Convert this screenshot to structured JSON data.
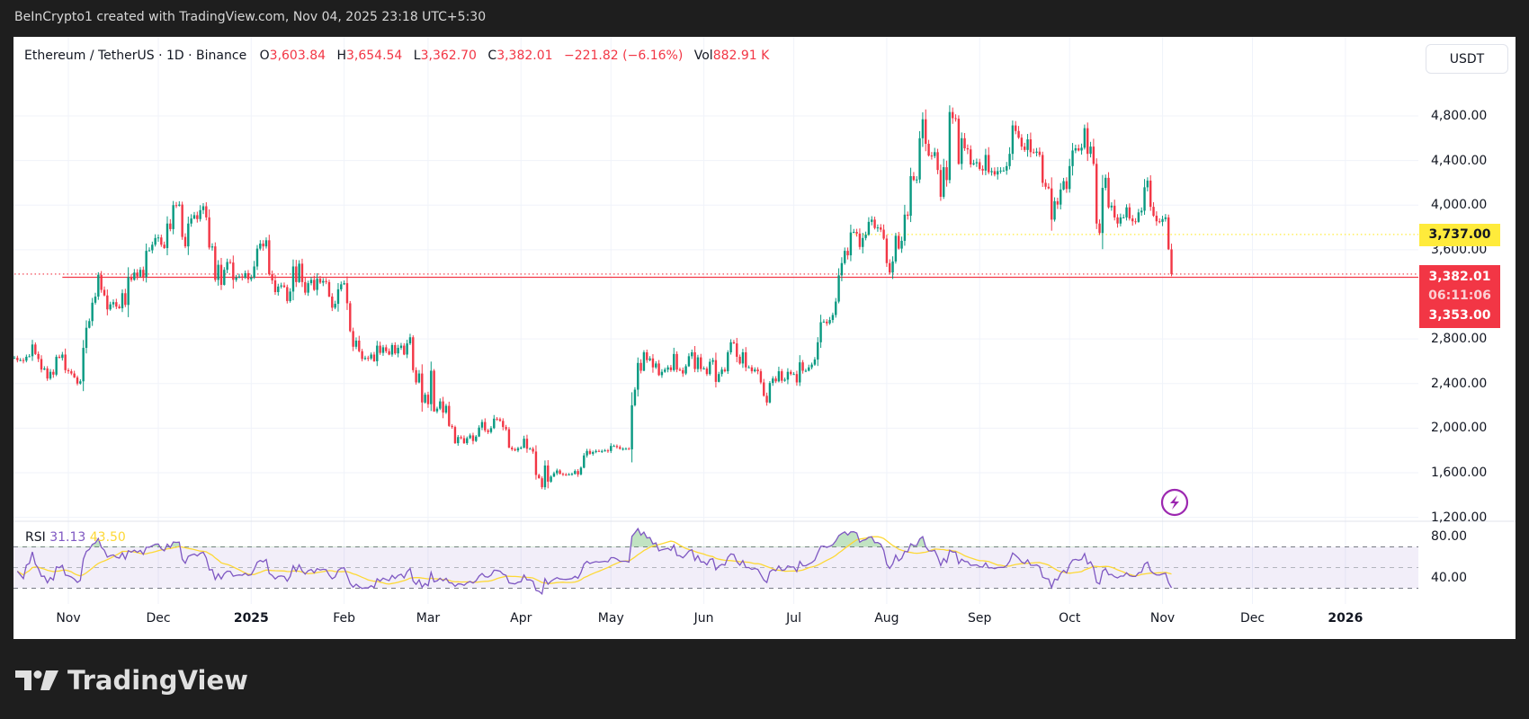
{
  "header": {
    "attribution": "BeInCrypto1 created with TradingView.com, Nov 04, 2025 23:18 UTC+5:30"
  },
  "legend": {
    "symbol": "Ethereum / TetherUS · 1D · Binance",
    "open_label": "O",
    "open": "3,603.84",
    "high_label": "H",
    "high": "3,654.54",
    "low_label": "L",
    "low": "3,362.70",
    "close_label": "C",
    "close": "3,382.01",
    "change": "−221.82 (−6.16%)",
    "vol_label": "Vol",
    "vol": "882.91 K"
  },
  "currency_button": "USDT",
  "price_labels": {
    "yellow_line": "3,737.00",
    "last_price": "3,382.01",
    "countdown": "06:11:06",
    "red_line": "3,353.00"
  },
  "rsi_legend": {
    "label": "RSI",
    "rsi": "31.13",
    "ma": "43.50"
  },
  "rsi_axis": [
    "80.00",
    "40.00"
  ],
  "logo_text": "TradingView",
  "chart_data": {
    "type": "candlestick",
    "colors": {
      "up": "#089981",
      "down": "#F23645",
      "rsi": "#7E57C2",
      "rsi_ma": "#FDD835",
      "yellow_line": "#FFEB3B",
      "red_line": "#F23645"
    },
    "ylim": [
      1200,
      4960
    ],
    "yticks": [
      "4,800.00",
      "4,400.00",
      "4,000.00",
      "3,600.00",
      "2,800.00",
      "2,400.00",
      "2,000.00",
      "1,600.00",
      "1,200.00"
    ],
    "ytick_values": [
      4800,
      4400,
      4000,
      3600,
      2800,
      2400,
      2000,
      1600,
      1200
    ],
    "xticks": [
      {
        "label": "Nov",
        "date": "2024-11-01"
      },
      {
        "label": "Dec",
        "date": "2024-12-01"
      },
      {
        "label": "2025",
        "date": "2025-01-01",
        "bold": true
      },
      {
        "label": "Feb",
        "date": "2025-02-01"
      },
      {
        "label": "Mar",
        "date": "2025-03-01"
      },
      {
        "label": "Apr",
        "date": "2025-04-01"
      },
      {
        "label": "May",
        "date": "2025-05-01"
      },
      {
        "label": "Jun",
        "date": "2025-06-01"
      },
      {
        "label": "Jul",
        "date": "2025-07-01"
      },
      {
        "label": "Aug",
        "date": "2025-08-01"
      },
      {
        "label": "Sep",
        "date": "2025-09-01"
      },
      {
        "label": "Oct",
        "date": "2025-10-01"
      },
      {
        "label": "Nov",
        "date": "2025-11-01"
      },
      {
        "label": "Dec",
        "date": "2025-12-01"
      },
      {
        "label": "2026",
        "date": "2026-01-01",
        "bold": true
      }
    ],
    "daily_closes": {
      "2024-10-14": [
        2630,
        2610,
        2610,
        2605,
        2640,
        2645,
        2750,
        2665,
        2620,
        2525,
        2535,
        2445,
        2505,
        2480,
        2640,
        2630,
        2660,
        2520
      ],
      "2024-11-01": [
        2510,
        2490,
        2455,
        2400,
        2420,
        2720,
        2900,
        2960,
        3125,
        3180,
        3375,
        3240,
        3190,
        3065,
        3110,
        3130,
        3090,
        3075,
        3210,
        3105,
        3355,
        3330,
        3395,
        3360,
        3420,
        3355,
        3590,
        3595,
        3645,
        3705
      ],
      "2024-12-01": [
        3710,
        3645,
        3615,
        3835,
        3785,
        4000,
        3995,
        4005,
        3715,
        3630,
        3835,
        3880,
        3910,
        3875,
        3955,
        3990,
        3890,
        3620,
        3630,
        3330,
        3465,
        3285,
        3420,
        3490,
        3485,
        3330,
        3350,
        3360,
        3350,
        3390,
        3335
      ],
      "2025-01-01": [
        3350,
        3450,
        3610,
        3655,
        3630,
        3685,
        3380,
        3325,
        3220,
        3270,
        3280,
        3265,
        3140,
        3225,
        3450,
        3310,
        3475,
        3310,
        3215,
        3300,
        3330,
        3240,
        3340,
        3305,
        3320,
        3310,
        3180,
        3080,
        3115,
        3245,
        3290
      ],
      "2025-02-01": [
        3300,
        3120,
        2870,
        2730,
        2785,
        2690,
        2620,
        2630,
        2625,
        2660,
        2600,
        2740,
        2675,
        2725,
        2690,
        2660,
        2745,
        2670,
        2720,
        2740,
        2660,
        2760,
        2815,
        2520,
        2410,
        2490,
        2230,
        2300
      ],
      "2025-03-01": [
        2215,
        2515,
        2150,
        2175,
        2240,
        2140,
        2200,
        2020,
        2010,
        1865,
        1920,
        1910,
        1865,
        1910,
        1935,
        1885,
        1925,
        2005,
        2055,
        1980,
        1965,
        2000,
        2085,
        2080,
        2065,
        2010,
        1990,
        1825,
        1810,
        1800,
        1820
      ],
      "2025-04-01": [
        1825,
        1905,
        1815,
        1815,
        1790,
        1580,
        1550,
        1470,
        1665,
        1520,
        1565,
        1595,
        1620,
        1590,
        1585,
        1580,
        1585,
        1590,
        1615,
        1585,
        1645,
        1755,
        1795,
        1770,
        1785,
        1795,
        1790,
        1795,
        1800,
        1795
      ],
      "2025-05-01": [
        1840,
        1840,
        1830,
        1815,
        1815,
        1815,
        1810,
        2205,
        2345,
        2585,
        2515,
        2680,
        2610,
        2625,
        2545,
        2580,
        2475,
        2505,
        2525,
        2545,
        2520,
        2665,
        2525,
        2520,
        2490,
        2555,
        2645,
        2680,
        2530,
        2635,
        2530
      ],
      "2025-06-01": [
        2535,
        2485,
        2595,
        2610,
        2415,
        2485,
        2525,
        2510,
        2680,
        2770,
        2760,
        2640,
        2580,
        2680,
        2545,
        2545,
        2510,
        2525,
        2510,
        2410,
        2290,
        2230,
        2405,
        2445,
        2420,
        2510,
        2425,
        2435,
        2505,
        2485
      ],
      "2025-07-01": [
        2485,
        2410,
        2590,
        2515,
        2515,
        2545,
        2570,
        2615,
        2770,
        2950,
        2955,
        2940,
        2970,
        3015,
        3135,
        3370,
        3480,
        3590,
        3550,
        3755,
        3760,
        3745,
        3625,
        3705,
        3735,
        3850,
        3870,
        3795,
        3800,
        3780,
        3700
      ],
      "2025-08-01": [
        3480,
        3395,
        3495,
        3725,
        3610,
        3680,
        3915,
        3905,
        4260,
        4225,
        4230,
        4600,
        4770,
        4550,
        4445,
        4440,
        4475,
        4315,
        4075,
        4340,
        4225,
        4835,
        4780,
        4775,
        4370,
        4600,
        4510,
        4500,
        4365,
        4375,
        4385
      ],
      "2025-09-01": [
        4325,
        4310,
        4450,
        4295,
        4305,
        4275,
        4305,
        4310,
        4310,
        4350,
        4460,
        4715,
        4665,
        4605,
        4525,
        4495,
        4590,
        4475,
        4470,
        4480,
        4450,
        4200,
        4165,
        4150,
        3870,
        4035,
        4005,
        4140,
        4215,
        4145
      ],
      "2025-10-01": [
        4350,
        4490,
        4510,
        4490,
        4515,
        4690,
        4460,
        4525,
        4370,
        3835,
        3750,
        4155,
        4245,
        3980,
        3995,
        3890,
        3835,
        3890,
        3890,
        3980,
        3880,
        3855,
        3850,
        3935,
        3950,
        4160,
        4220,
        3985,
        3905,
        3855,
        3850
      ],
      "2025-11-01": [
        3875,
        3890,
        3603.84,
        3382.01
      ]
    },
    "last_candle": {
      "date": "2025-11-04",
      "open": 3603.84,
      "high": 3654.54,
      "low": 3362.7,
      "close": 3382.01
    },
    "horizontal_lines": [
      {
        "price": 3737.0,
        "style": "dotted",
        "color": "#FFEB3B",
        "from": "2025-07-20"
      },
      {
        "price": 3353.0,
        "style": "solid",
        "color": "#F23645",
        "from": "2024-10-30"
      },
      {
        "price": 3382.01,
        "style": "dotted",
        "color": "#F23645",
        "from": "2024-10-14"
      }
    ],
    "rsi": {
      "last": 31.13,
      "ma_last": 43.5,
      "ylim": [
        22,
        98
      ],
      "bands": [
        70,
        50,
        30
      ],
      "axis_ticks": [
        80,
        40
      ]
    }
  }
}
